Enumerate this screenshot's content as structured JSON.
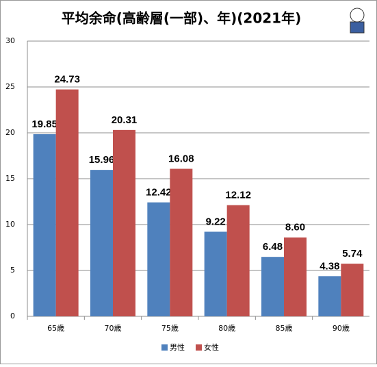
{
  "chart_data": {
    "type": "bar",
    "title": "平均余命(高齢層(一部)、年)(2021年)",
    "categories": [
      "65歳",
      "70歳",
      "75歳",
      "80歳",
      "85歳",
      "90歳"
    ],
    "series": [
      {
        "name": "男性",
        "color": "#4f81bd",
        "values": [
          19.85,
          15.96,
          12.42,
          9.22,
          6.48,
          4.38
        ],
        "value_labels": [
          "19.85",
          "15.96",
          "12.42",
          "9.22",
          "6.48",
          "4.38"
        ]
      },
      {
        "name": "女性",
        "color": "#c0504d",
        "values": [
          24.73,
          20.31,
          16.08,
          12.12,
          8.6,
          5.74
        ],
        "value_labels": [
          "24.73",
          "20.31",
          "16.08",
          "12.12",
          "8.60",
          "5.74"
        ]
      }
    ],
    "ylim": [
      0,
      30
    ],
    "yticks": [
      0,
      5,
      10,
      15,
      20,
      25,
      30
    ],
    "grid": true,
    "legend": "bottom"
  }
}
